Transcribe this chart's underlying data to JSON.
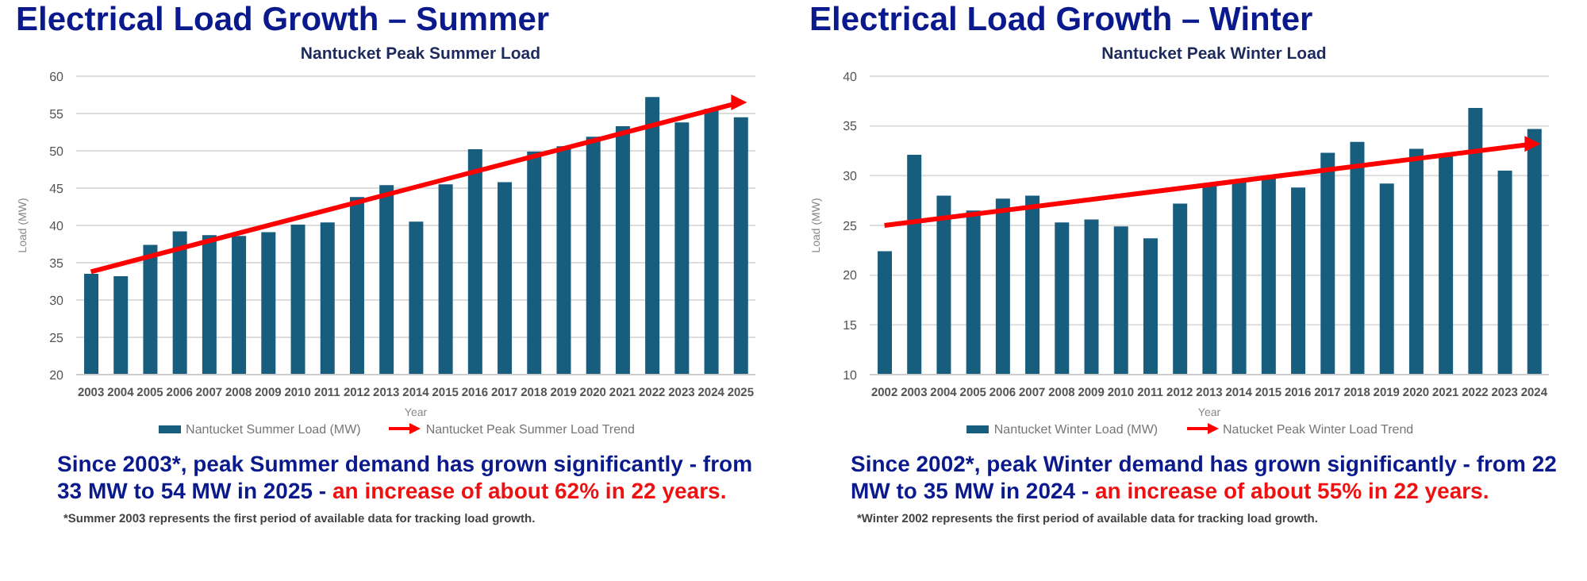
{
  "chart_data": [
    {
      "type": "bar",
      "title": "Electrical Load Growth – Summer",
      "subtitle": "Nantucket Peak Summer Load",
      "xlabel": "Year",
      "ylabel": "Load (MW)",
      "categories": [
        "2003",
        "2004",
        "2005",
        "2006",
        "2007",
        "2008",
        "2009",
        "2010",
        "2011",
        "2012",
        "2013",
        "2014",
        "2015",
        "2016",
        "2017",
        "2018",
        "2019",
        "2020",
        "2021",
        "2022",
        "2023",
        "2024",
        "2025"
      ],
      "series": [
        {
          "name": "Nantucket Summer Load (MW)",
          "color": "#175e7e",
          "values": [
            33.5,
            33.2,
            37.4,
            39.2,
            38.7,
            38.6,
            39.1,
            40.1,
            40.4,
            43.8,
            45.4,
            40.5,
            45.5,
            50.2,
            45.8,
            49.9,
            50.6,
            51.9,
            53.3,
            57.2,
            53.8,
            55.6,
            54.5
          ]
        },
        {
          "name": "Nantucket Peak Summer Load Trend",
          "type": "line",
          "color": "#ff0000",
          "values": [
            33.8,
            null,
            null,
            null,
            null,
            null,
            null,
            null,
            null,
            null,
            null,
            null,
            null,
            null,
            null,
            null,
            null,
            null,
            null,
            null,
            null,
            null,
            56.5
          ]
        }
      ],
      "ylim": [
        20,
        60
      ],
      "yticks": [
        20,
        25,
        30,
        35,
        40,
        45,
        50,
        55,
        60
      ],
      "grid": "y",
      "legend": "bottom",
      "annotations": [
        "Since 2003*, peak Summer demand has grown significantly - from 33 MW to 54 MW in 2025 -",
        "an increase of about 62% in 22 years.",
        "*Summer 2003 represents the first period of available data for tracking load growth."
      ]
    },
    {
      "type": "bar",
      "title": "Electrical Load Growth – Winter",
      "subtitle": "Nantucket Peak Winter Load",
      "xlabel": "Year",
      "ylabel": "Load (MW)",
      "categories": [
        "2002",
        "2003",
        "2004",
        "2005",
        "2006",
        "2007",
        "2008",
        "2009",
        "2010",
        "2011",
        "2012",
        "2013",
        "2014",
        "2015",
        "2016",
        "2017",
        "2018",
        "2019",
        "2020",
        "2021",
        "2022",
        "2023",
        "2024"
      ],
      "series": [
        {
          "name": "Nantucket Winter Load (MW)",
          "color": "#175e7e",
          "values": [
            22.4,
            32.1,
            28.0,
            26.5,
            27.7,
            28.0,
            25.3,
            25.6,
            24.9,
            23.7,
            27.2,
            29.2,
            29.6,
            29.9,
            28.8,
            32.3,
            33.4,
            29.2,
            32.7,
            32.0,
            36.8,
            30.5,
            34.7
          ]
        },
        {
          "name": "Natucket Peak Winter Load Trend",
          "type": "line",
          "color": "#ff0000",
          "values": [
            25.0,
            null,
            null,
            null,
            null,
            null,
            null,
            null,
            null,
            null,
            null,
            null,
            null,
            null,
            null,
            null,
            null,
            null,
            null,
            null,
            null,
            null,
            33.2
          ]
        }
      ],
      "ylim": [
        10,
        40
      ],
      "yticks": [
        10,
        15,
        20,
        25,
        30,
        35,
        40
      ],
      "grid": "y",
      "legend": "bottom",
      "annotations": [
        "Since 2002*, peak Winter demand has grown significantly - from 22 MW to 35 MW in 2024 -",
        "an increase of about 55% in 22 years.",
        "*Winter 2002 represents the first period of available data for tracking load growth."
      ]
    }
  ]
}
